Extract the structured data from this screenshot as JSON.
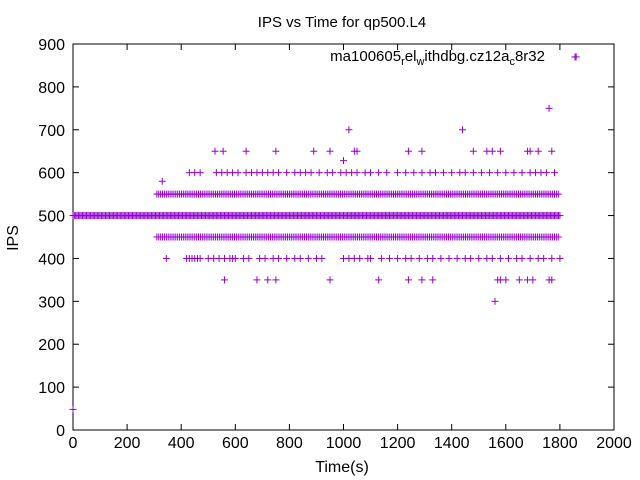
{
  "chart_data": {
    "type": "scatter",
    "title": "IPS vs Time for qp500.L4",
    "xlabel": "Time(s)",
    "ylabel": "IPS",
    "xlim": [
      0,
      2000
    ],
    "ylim": [
      0,
      900
    ],
    "x_ticks": [
      "0",
      "200",
      "400",
      "600",
      "800",
      "1000",
      "1200",
      "1400",
      "1600",
      "1800",
      "2000"
    ],
    "y_ticks": [
      "0",
      "100",
      "200",
      "300",
      "400",
      "500",
      "600",
      "700",
      "800",
      "900"
    ],
    "grid": false,
    "marker": "+",
    "legend_position": "top-right",
    "series": [
      {
        "name_parts": [
          {
            "text": "ma100605",
            "sub": false
          },
          {
            "text": "r",
            "sub": true
          },
          {
            "text": "el",
            "sub": false
          },
          {
            "text": "w",
            "sub": true
          },
          {
            "text": "ithdbg.cz12a",
            "sub": false
          },
          {
            "text": "c",
            "sub": true
          },
          {
            "text": "8r32",
            "sub": false
          }
        ],
        "color": "#9400d3",
        "note": "Points listed as [time_s, ips]. Time step ~5s; dense bands rendered from band ranges.",
        "dense_bands": [
          {
            "y": 500,
            "x_from": 0,
            "x_to": 1800,
            "step": 5
          },
          {
            "y": 550,
            "x_from": 310,
            "x_to": 1800,
            "step": 7
          },
          {
            "y": 450,
            "x_from": 310,
            "x_to": 1800,
            "step": 7
          }
        ],
        "points": [
          [
            0,
            48
          ],
          [
            330,
            580
          ],
          [
            345,
            400
          ],
          [
            420,
            400
          ],
          [
            430,
            400
          ],
          [
            440,
            400
          ],
          [
            450,
            400
          ],
          [
            460,
            400
          ],
          [
            470,
            400
          ],
          [
            500,
            400
          ],
          [
            520,
            400
          ],
          [
            540,
            400
          ],
          [
            560,
            400
          ],
          [
            580,
            400
          ],
          [
            590,
            400
          ],
          [
            600,
            400
          ],
          [
            630,
            400
          ],
          [
            650,
            400
          ],
          [
            690,
            400
          ],
          [
            710,
            400
          ],
          [
            740,
            400
          ],
          [
            760,
            400
          ],
          [
            790,
            400
          ],
          [
            820,
            400
          ],
          [
            840,
            400
          ],
          [
            870,
            400
          ],
          [
            900,
            400
          ],
          [
            920,
            400
          ],
          [
            1000,
            400
          ],
          [
            1020,
            400
          ],
          [
            1040,
            400
          ],
          [
            1060,
            400
          ],
          [
            1090,
            400
          ],
          [
            1100,
            400
          ],
          [
            1140,
            400
          ],
          [
            1170,
            400
          ],
          [
            1200,
            400
          ],
          [
            1230,
            400
          ],
          [
            1250,
            400
          ],
          [
            1280,
            400
          ],
          [
            1310,
            400
          ],
          [
            1330,
            400
          ],
          [
            1360,
            400
          ],
          [
            1390,
            400
          ],
          [
            1420,
            400
          ],
          [
            1450,
            400
          ],
          [
            1470,
            400
          ],
          [
            1500,
            400
          ],
          [
            1530,
            400
          ],
          [
            1550,
            400
          ],
          [
            1580,
            400
          ],
          [
            1610,
            400
          ],
          [
            1640,
            400
          ],
          [
            1660,
            400
          ],
          [
            1690,
            400
          ],
          [
            1720,
            400
          ],
          [
            1740,
            400
          ],
          [
            1770,
            400
          ],
          [
            1800,
            400
          ],
          [
            430,
            600
          ],
          [
            450,
            600
          ],
          [
            470,
            600
          ],
          [
            530,
            600
          ],
          [
            550,
            600
          ],
          [
            570,
            600
          ],
          [
            590,
            600
          ],
          [
            610,
            600
          ],
          [
            640,
            600
          ],
          [
            660,
            600
          ],
          [
            680,
            600
          ],
          [
            700,
            600
          ],
          [
            720,
            600
          ],
          [
            740,
            600
          ],
          [
            760,
            600
          ],
          [
            790,
            600
          ],
          [
            820,
            600
          ],
          [
            840,
            600
          ],
          [
            860,
            600
          ],
          [
            880,
            600
          ],
          [
            910,
            600
          ],
          [
            940,
            600
          ],
          [
            960,
            600
          ],
          [
            990,
            600
          ],
          [
            1010,
            600
          ],
          [
            1030,
            600
          ],
          [
            1050,
            600
          ],
          [
            1080,
            600
          ],
          [
            1100,
            600
          ],
          [
            1130,
            600
          ],
          [
            1160,
            600
          ],
          [
            1200,
            600
          ],
          [
            1230,
            600
          ],
          [
            1260,
            600
          ],
          [
            1290,
            600
          ],
          [
            1320,
            600
          ],
          [
            1340,
            600
          ],
          [
            1370,
            600
          ],
          [
            1400,
            600
          ],
          [
            1430,
            600
          ],
          [
            1450,
            600
          ],
          [
            1480,
            600
          ],
          [
            1510,
            600
          ],
          [
            1540,
            600
          ],
          [
            1570,
            600
          ],
          [
            1600,
            600
          ],
          [
            1630,
            600
          ],
          [
            1660,
            600
          ],
          [
            1690,
            600
          ],
          [
            1710,
            600
          ],
          [
            1730,
            600
          ],
          [
            1750,
            600
          ],
          [
            1780,
            600
          ],
          [
            525,
            650
          ],
          [
            555,
            650
          ],
          [
            640,
            650
          ],
          [
            750,
            650
          ],
          [
            890,
            650
          ],
          [
            950,
            650
          ],
          [
            1040,
            650
          ],
          [
            1050,
            650
          ],
          [
            1240,
            650
          ],
          [
            1290,
            650
          ],
          [
            1480,
            650
          ],
          [
            1530,
            650
          ],
          [
            1550,
            650
          ],
          [
            1580,
            650
          ],
          [
            1680,
            650
          ],
          [
            1690,
            650
          ],
          [
            1720,
            650
          ],
          [
            1770,
            650
          ],
          [
            1000,
            628
          ],
          [
            1020,
            700
          ],
          [
            1440,
            700
          ],
          [
            1760,
            750
          ],
          [
            1860,
            870
          ],
          [
            560,
            350
          ],
          [
            680,
            350
          ],
          [
            720,
            350
          ],
          [
            750,
            350
          ],
          [
            950,
            350
          ],
          [
            1130,
            350
          ],
          [
            1240,
            350
          ],
          [
            1290,
            350
          ],
          [
            1330,
            350
          ],
          [
            1570,
            350
          ],
          [
            1580,
            350
          ],
          [
            1600,
            350
          ],
          [
            1650,
            350
          ],
          [
            1680,
            350
          ],
          [
            1700,
            350
          ],
          [
            1760,
            350
          ],
          [
            1770,
            350
          ],
          [
            1560,
            300
          ]
        ]
      }
    ]
  }
}
